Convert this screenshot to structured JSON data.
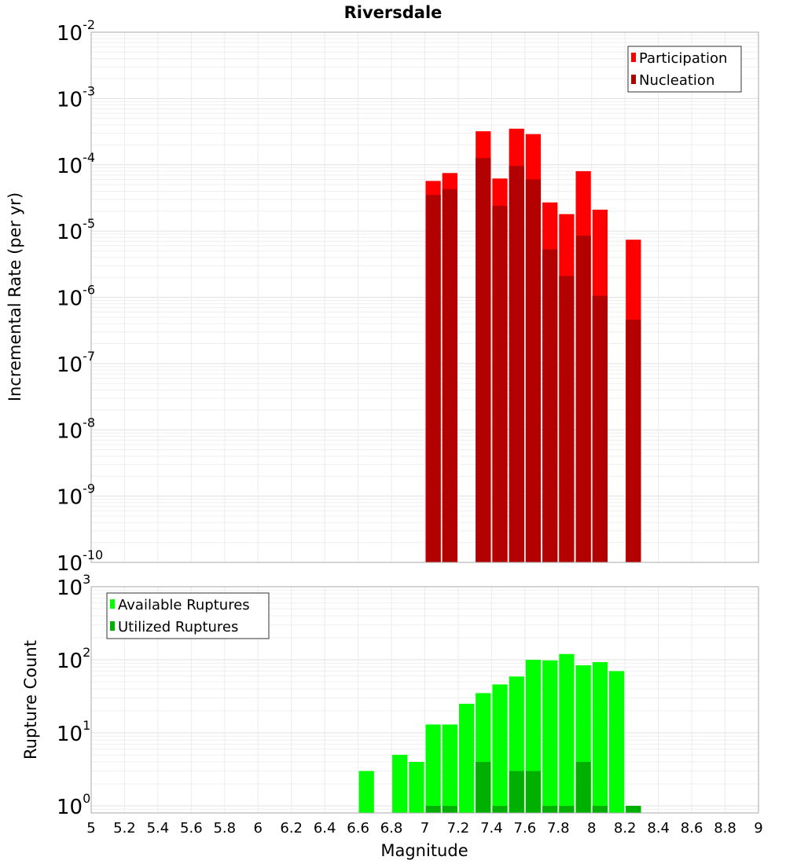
{
  "chart_data": [
    {
      "type": "bar",
      "title": "Riversdale",
      "xlabel": "Magnitude",
      "ylabel": "Incremental Rate (per yr)",
      "yscale": "log",
      "ylim": [
        1e-10,
        0.01
      ],
      "xlim": [
        5,
        9
      ],
      "grid": true,
      "legend_position": "top-right",
      "x": [
        7.05,
        7.15,
        7.35,
        7.45,
        7.55,
        7.65,
        7.75,
        7.85,
        7.95,
        8.05,
        8.25
      ],
      "series": [
        {
          "name": "Participation",
          "color": "#ff0000",
          "values": [
            5.7e-05,
            7.5e-05,
            0.00032,
            6.2e-05,
            0.00035,
            0.00029,
            2.7e-05,
            1.8e-05,
            8e-05,
            2.1e-05,
            7.4e-06
          ]
        },
        {
          "name": "Nucleation",
          "color": "#b30000",
          "values": [
            3.5e-05,
            4.3e-05,
            0.000126,
            2.4e-05,
            9.6e-05,
            6e-05,
            5.3e-06,
            2.1e-06,
            8.5e-06,
            1.05e-06,
            4.6e-07
          ]
        }
      ],
      "ytick_exponents": [
        -10,
        -9,
        -8,
        -7,
        -6,
        -5,
        -4,
        -3,
        -2
      ]
    },
    {
      "type": "bar",
      "xlabel": "Magnitude",
      "ylabel": "Rupture Count",
      "yscale": "log",
      "ylim": [
        0.8,
        1000
      ],
      "xlim": [
        5,
        9
      ],
      "grid": true,
      "legend_position": "top-left",
      "x": [
        6.65,
        6.85,
        6.95,
        7.05,
        7.15,
        7.25,
        7.35,
        7.45,
        7.55,
        7.65,
        7.75,
        7.85,
        7.95,
        8.05,
        8.15,
        8.25
      ],
      "series": [
        {
          "name": "Available Ruptures",
          "color": "#00ff00",
          "values": [
            3,
            5,
            4,
            13,
            13,
            25,
            35,
            46,
            59,
            100,
            98,
            120,
            84,
            93,
            70,
            1
          ]
        },
        {
          "name": "Utilized Ruptures",
          "color": "#00b000",
          "values": [
            0,
            0,
            0,
            1,
            1,
            0,
            4,
            1,
            3,
            3,
            1,
            1,
            4,
            1,
            0,
            1
          ]
        }
      ],
      "ytick_exponents": [
        0,
        1,
        2,
        3
      ]
    }
  ],
  "xticks": [
    "5",
    "5.2",
    "5.4",
    "5.6",
    "5.8",
    "6",
    "6.2",
    "6.4",
    "6.6",
    "6.8",
    "7",
    "7.2",
    "7.4",
    "7.6",
    "7.8",
    "8",
    "8.2",
    "8.4",
    "8.6",
    "8.8",
    "9"
  ]
}
